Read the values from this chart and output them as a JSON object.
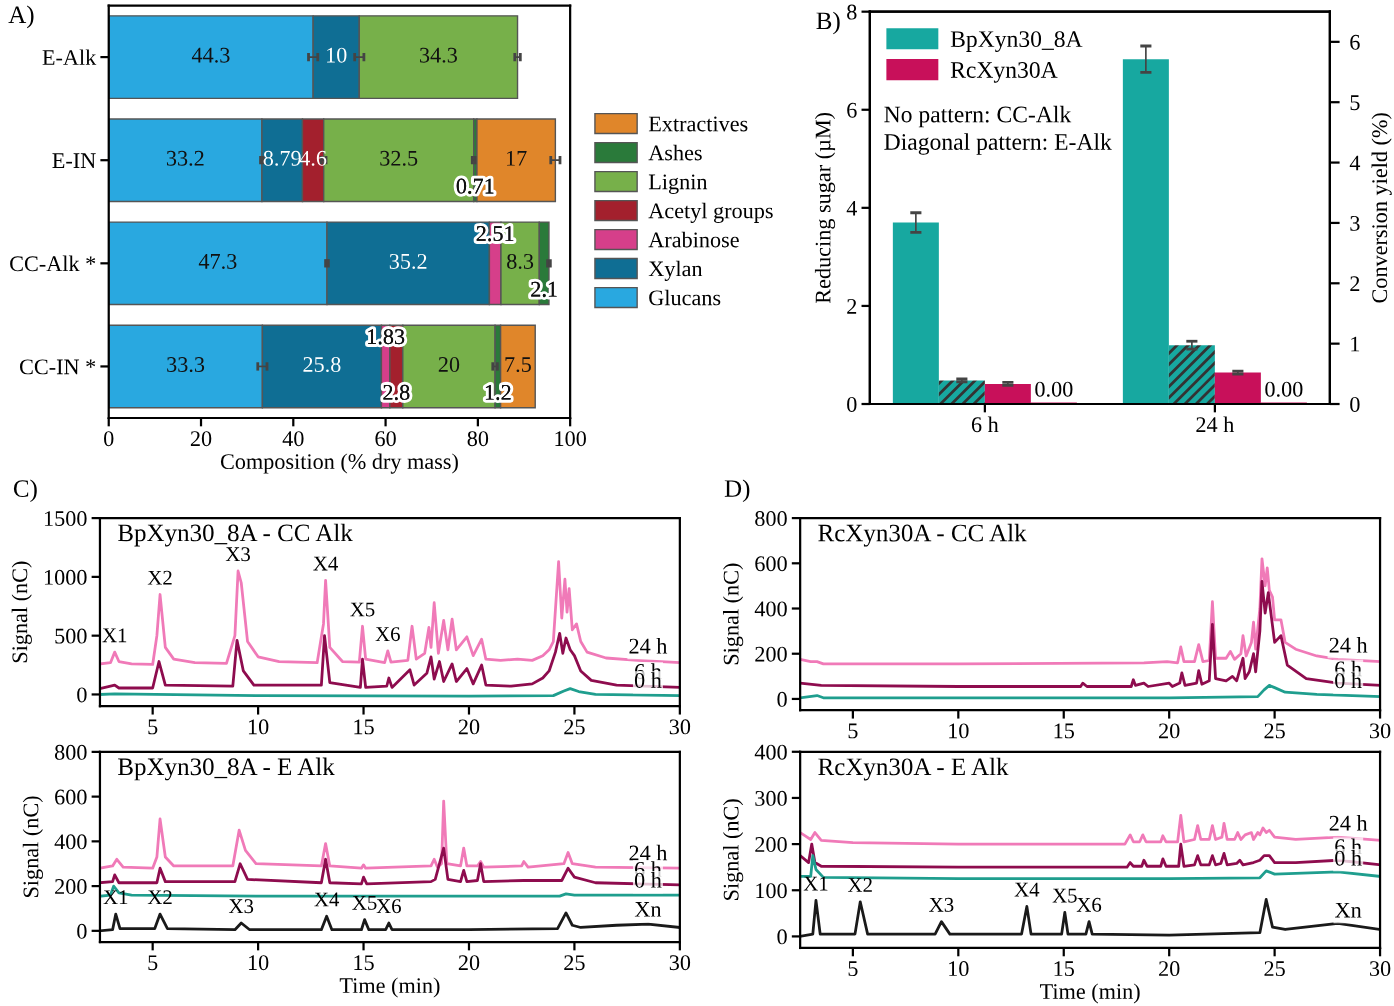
{
  "chart_data": [
    {
      "type": "bar",
      "orientation": "horizontal",
      "stacked": true,
      "categories": [
        "E-Alk",
        "E-IN",
        "CC-Alk *",
        "CC-IN *"
      ],
      "xlabel": "Composition (% dry mass)",
      "xlim": [
        0,
        100
      ],
      "xticks": [
        0,
        20,
        40,
        60,
        80,
        100
      ],
      "legend": "right",
      "data_labels": true,
      "annotations": [
        "A)"
      ],
      "series": [
        {
          "name": "Glucans",
          "color": "#29a8e0",
          "values": [
            44.3,
            33.2,
            47.3,
            33.3
          ],
          "errors": [
            1.0,
            0.3,
            0.3,
            1.0
          ]
        },
        {
          "name": "Xylan",
          "color": "#0f6e94",
          "values": [
            10,
            8.79,
            35.2,
            25.8
          ],
          "errors": [
            1.0,
            null,
            null,
            null
          ]
        },
        {
          "name": "Arabinose",
          "color": "#d63f8a",
          "values": [
            null,
            null,
            2.51,
            1.83
          ]
        },
        {
          "name": "Acetyl groups",
          "color": "#a3202d",
          "values": [
            null,
            4.6,
            null,
            2.8
          ],
          "errors": [
            null,
            0.5,
            null,
            null
          ]
        },
        {
          "name": "Lignin",
          "color": "#77b04a",
          "values": [
            34.3,
            32.5,
            8.3,
            20
          ],
          "errors": [
            0.6,
            0.3,
            null,
            0.5
          ]
        },
        {
          "name": "Ashes",
          "color": "#2a7a3a",
          "values": [
            null,
            0.71,
            2.1,
            1.2
          ],
          "errors": [
            null,
            null,
            0.3,
            null
          ]
        },
        {
          "name": "Extractives",
          "color": "#e0862a",
          "values": [
            null,
            17,
            null,
            7.5
          ],
          "errors": [
            null,
            1.0,
            null,
            null
          ]
        }
      ]
    },
    {
      "type": "bar",
      "categories": [
        "6 h",
        "24 h"
      ],
      "ylabel": "Reducing sugar (µM)",
      "y2label": "Conversion yield (%)",
      "ylim": [
        0,
        8
      ],
      "yticks": [
        0,
        2,
        4,
        6,
        8
      ],
      "y2lim": [
        0,
        6.5
      ],
      "y2ticks": [
        0,
        1,
        2,
        3,
        4,
        5,
        6
      ],
      "legend": "top left",
      "annotations": [
        "B)",
        "No pattern: CC-Alk",
        "Diagonal pattern: E-Alk"
      ],
      "series": [
        {
          "name": "BpXyn30_8A",
          "color": "#17a8a0",
          "values": [
            3.7,
            7.03
          ],
          "errors": [
            0.2,
            0.27
          ]
        },
        {
          "color": "#17a8a0",
          "values": [
            0.48,
            1.2
          ],
          "errors": [
            0.03,
            0.08
          ]
        },
        {
          "name": "RcXyn30A",
          "color": "#c8105a",
          "values": [
            0.41,
            0.64
          ],
          "errors": [
            0.03,
            0.03
          ]
        },
        {
          "color": "#c8105a",
          "values": [
            0,
            0
          ],
          "value_labels": [
            "0.00",
            "0.00"
          ]
        }
      ]
    },
    {
      "type": "line",
      "title": "BpXyn30_8A - CC Alk",
      "ylabel": "Signal (nC)",
      "xlim": [
        2.5,
        30
      ],
      "xticks": [
        5,
        10,
        15,
        20,
        25,
        30
      ],
      "ylim": [
        -100,
        1500
      ],
      "yticks": [
        0,
        500,
        1000,
        1500
      ],
      "annotations": [
        "C)",
        {
          "text": "X1",
          "x": 3.2,
          "y": 360
        },
        {
          "text": "X2",
          "x": 5.35,
          "y": 850
        },
        {
          "text": "X3",
          "x": 9.05,
          "y": 1050
        },
        {
          "text": "X4",
          "x": 13.2,
          "y": 970
        },
        {
          "text": "X5",
          "x": 14.95,
          "y": 580
        },
        {
          "text": "X6",
          "x": 16.15,
          "y": 370
        }
      ],
      "series": [
        {
          "name": "24 h",
          "color": "#f07ab8",
          "x": [
            2.5,
            3.0,
            3.2,
            3.4,
            4.0,
            5.0,
            5.2,
            5.35,
            5.6,
            6.0,
            7,
            8.5,
            8.9,
            9.05,
            9.2,
            9.5,
            10,
            11,
            12.8,
            13.1,
            13.2,
            13.4,
            14,
            14.8,
            14.95,
            15.1,
            16,
            16.15,
            16.3,
            17.1,
            17.3,
            17.5,
            17.9,
            18.1,
            18.2,
            18.35,
            18.55,
            18.8,
            19.0,
            19.2,
            19.4,
            19.9,
            20.2,
            20.6,
            20.8,
            21.5,
            22.3,
            23,
            23.5,
            23.8,
            24.0,
            24.25,
            24.4,
            24.55,
            24.65,
            24.75,
            24.9,
            25.1,
            25.3,
            25.6,
            26.5,
            28,
            30
          ],
          "values": [
            260,
            270,
            360,
            280,
            260,
            255,
            500,
            850,
            400,
            300,
            270,
            265,
            500,
            1050,
            950,
            450,
            320,
            280,
            270,
            600,
            970,
            400,
            280,
            275,
            580,
            300,
            270,
            370,
            275,
            290,
            580,
            300,
            350,
            570,
            400,
            780,
            350,
            630,
            380,
            640,
            380,
            490,
            330,
            470,
            300,
            290,
            300,
            290,
            330,
            380,
            450,
            1130,
            650,
            980,
            700,
            900,
            550,
            600,
            450,
            360,
            310,
            290,
            270
          ]
        },
        {
          "name": "6 h",
          "color": "#8e0c4e",
          "x": [
            2.5,
            3.2,
            3.4,
            5.0,
            5.3,
            5.6,
            8.8,
            9.0,
            9.3,
            9.8,
            13.0,
            13.15,
            13.4,
            14.85,
            14.95,
            15.1,
            16.1,
            16.2,
            16.35,
            17.2,
            17.4,
            18.0,
            18.2,
            18.35,
            18.6,
            18.8,
            19.2,
            19.4,
            19.9,
            20.2,
            20.6,
            20.8,
            22,
            23,
            23.5,
            23.8,
            24.1,
            24.3,
            24.45,
            24.6,
            24.8,
            25.0,
            25.3,
            25.8,
            27,
            30
          ],
          "values": [
            50,
            80,
            55,
            55,
            280,
            80,
            70,
            460,
            200,
            80,
            80,
            500,
            100,
            60,
            300,
            60,
            70,
            140,
            60,
            210,
            80,
            180,
            320,
            130,
            280,
            110,
            260,
            110,
            220,
            90,
            250,
            80,
            70,
            90,
            140,
            200,
            360,
            520,
            350,
            480,
            380,
            330,
            200,
            120,
            80,
            60
          ]
        },
        {
          "name": "0 h",
          "color": "#1f9e8e",
          "x": [
            2.5,
            3.2,
            10,
            20,
            24,
            24.5,
            24.8,
            25.2,
            26,
            30
          ],
          "values": [
            0,
            5,
            -10,
            -15,
            -10,
            30,
            50,
            25,
            0,
            -10
          ]
        }
      ]
    },
    {
      "type": "line",
      "title": "BpXyn30_8A - E Alk",
      "xlabel": "Time (min)",
      "ylabel": "Signal (nC)",
      "xlim": [
        2.5,
        30
      ],
      "xticks": [
        5,
        10,
        15,
        20,
        25,
        30
      ],
      "ylim": [
        -50,
        800
      ],
      "yticks": [
        0,
        200,
        400,
        600,
        800
      ],
      "annotations": [
        {
          "text": "X1",
          "x": 3.25,
          "y": 75
        },
        {
          "text": "X2",
          "x": 5.35,
          "y": 75
        },
        {
          "text": "X3",
          "x": 9.2,
          "y": 35
        },
        {
          "text": "X4",
          "x": 13.25,
          "y": 65
        },
        {
          "text": "X5",
          "x": 15.05,
          "y": 50
        },
        {
          "text": "X6",
          "x": 16.2,
          "y": 35
        }
      ],
      "series": [
        {
          "name": "24 h",
          "color": "#f07ab8",
          "x": [
            2.5,
            3.1,
            3.3,
            3.6,
            5.0,
            5.2,
            5.35,
            5.6,
            6.0,
            8.8,
            9.1,
            9.4,
            9.9,
            13.0,
            13.2,
            13.4,
            14.9,
            15.0,
            15.1,
            18.2,
            18.35,
            18.5,
            18.7,
            18.8,
            18.95,
            19.6,
            19.75,
            19.9,
            20.4,
            20.55,
            20.7,
            22.5,
            22.6,
            22.8,
            24.5,
            24.7,
            24.9,
            26,
            30
          ],
          "values": [
            280,
            290,
            320,
            285,
            280,
            330,
            500,
            330,
            290,
            290,
            450,
            360,
            300,
            290,
            390,
            290,
            280,
            295,
            280,
            290,
            320,
            285,
            300,
            580,
            300,
            290,
            370,
            290,
            290,
            310,
            285,
            290,
            310,
            285,
            300,
            350,
            300,
            285,
            280
          ]
        },
        {
          "name": "6 h",
          "color": "#8e0c4e",
          "x": [
            2.5,
            3.1,
            3.2,
            3.4,
            5.2,
            5.35,
            5.6,
            8.9,
            9.15,
            9.5,
            13.0,
            13.2,
            13.4,
            14.9,
            15.0,
            15.15,
            18.2,
            18.4,
            18.8,
            19.0,
            19.6,
            19.75,
            19.9,
            20.4,
            20.55,
            20.7,
            22.6,
            24.4,
            24.7,
            25.0,
            26,
            30
          ],
          "values": [
            215,
            220,
            250,
            215,
            215,
            280,
            220,
            220,
            300,
            230,
            215,
            320,
            215,
            210,
            240,
            210,
            220,
            230,
            370,
            230,
            220,
            270,
            220,
            225,
            300,
            220,
            225,
            225,
            280,
            240,
            215,
            205
          ]
        },
        {
          "name": "0 h",
          "color": "#1f9e8e",
          "x": [
            2.5,
            3.0,
            3.15,
            3.4,
            4,
            10,
            20,
            24.3,
            24.6,
            25,
            30
          ],
          "values": [
            155,
            160,
            200,
            170,
            160,
            155,
            155,
            155,
            165,
            160,
            160
          ]
        },
        {
          "name": "Xn",
          "color": "#1a1a1a",
          "x": [
            2.5,
            3.1,
            3.25,
            3.45,
            5.1,
            5.35,
            5.7,
            8.9,
            9.2,
            9.6,
            13.0,
            13.25,
            13.5,
            14.9,
            15.05,
            15.25,
            16.05,
            16.2,
            16.35,
            20,
            24.2,
            24.6,
            24.9,
            25.3,
            27,
            28.5,
            30
          ],
          "values": [
            0,
            5,
            75,
            10,
            10,
            75,
            10,
            5,
            35,
            5,
            5,
            65,
            5,
            5,
            50,
            5,
            5,
            35,
            5,
            5,
            10,
            80,
            25,
            15,
            25,
            30,
            15
          ]
        }
      ]
    },
    {
      "type": "line",
      "title": "RcXyn30A - CC Alk",
      "ylabel": "Signal (nC)",
      "xlim": [
        2.5,
        30
      ],
      "xticks": [
        5,
        10,
        15,
        20,
        25,
        30
      ],
      "ylim": [
        -50,
        800
      ],
      "yticks": [
        0,
        200,
        400,
        600,
        800
      ],
      "annotations": [
        "D)"
      ],
      "series": [
        {
          "name": "24 h",
          "color": "#f07ab8",
          "x": [
            2.5,
            3.0,
            3.3,
            3.6,
            10,
            18.8,
            19.9,
            20.4,
            20.55,
            20.7,
            21.2,
            21.4,
            21.6,
            21.9,
            22.05,
            22.2,
            22.7,
            22.9,
            23.1,
            23.4,
            23.5,
            23.65,
            23.9,
            24.0,
            24.1,
            24.3,
            24.4,
            24.55,
            24.65,
            24.75,
            24.9,
            25.0,
            25.3,
            25.5,
            26,
            27,
            28,
            30
          ],
          "values": [
            175,
            165,
            165,
            155,
            155,
            160,
            165,
            160,
            230,
            165,
            165,
            240,
            165,
            170,
            430,
            180,
            180,
            210,
            175,
            200,
            280,
            190,
            250,
            340,
            220,
            400,
            620,
            500,
            580,
            480,
            450,
            350,
            350,
            250,
            220,
            190,
            175,
            165
          ]
        },
        {
          "name": "6 h",
          "color": "#8e0c4e",
          "x": [
            2.5,
            3.5,
            10,
            15.8,
            15.9,
            16.1,
            18.2,
            18.3,
            18.4,
            18.8,
            19.0,
            20.0,
            20.15,
            20.5,
            20.6,
            20.75,
            21.3,
            21.4,
            21.55,
            21.9,
            22.05,
            22.2,
            22.7,
            23.0,
            23.2,
            23.5,
            23.6,
            23.8,
            24.0,
            24.1,
            24.3,
            24.4,
            24.55,
            24.7,
            24.85,
            25.0,
            25.3,
            25.6,
            26.5,
            28,
            30
          ],
          "values": [
            70,
            60,
            55,
            55,
            70,
            55,
            55,
            85,
            60,
            70,
            55,
            70,
            55,
            70,
            115,
            60,
            70,
            125,
            65,
            80,
            330,
            90,
            80,
            100,
            80,
            180,
            90,
            120,
            200,
            120,
            300,
            520,
            380,
            470,
            360,
            250,
            280,
            150,
            90,
            70,
            60
          ]
        },
        {
          "name": "0 h",
          "color": "#1f9e8e",
          "x": [
            2.5,
            3.3,
            3.6,
            10,
            20,
            24.2,
            24.5,
            24.75,
            25,
            25.5,
            27,
            30
          ],
          "values": [
            5,
            15,
            5,
            5,
            5,
            10,
            40,
            60,
            50,
            30,
            20,
            10
          ]
        }
      ]
    },
    {
      "type": "line",
      "title": "RcXyn30A - E Alk",
      "xlabel": "Time (min)",
      "ylabel": "Signal (nC)",
      "xlim": [
        2.5,
        30
      ],
      "xticks": [
        5,
        10,
        15,
        20,
        25,
        30
      ],
      "ylim": [
        -25,
        400
      ],
      "yticks": [
        0,
        100,
        200,
        300,
        400
      ],
      "annotations": [
        {
          "text": "X1",
          "x": 3.25,
          "y": 78
        },
        {
          "text": "X2",
          "x": 5.35,
          "y": 75
        },
        {
          "text": "X3",
          "x": 9.2,
          "y": 32
        },
        {
          "text": "X4",
          "x": 13.25,
          "y": 65
        },
        {
          "text": "X5",
          "x": 15.05,
          "y": 52
        },
        {
          "text": "X6",
          "x": 16.2,
          "y": 32
        }
      ],
      "series": [
        {
          "name": "24 h",
          "color": "#f07ab8",
          "x": [
            2.5,
            3.0,
            3.2,
            3.5,
            5,
            10,
            17.9,
            18.15,
            18.3,
            18.6,
            18.75,
            18.9,
            19.6,
            19.7,
            19.85,
            20.4,
            20.55,
            20.7,
            21.2,
            21.35,
            21.5,
            21.9,
            22.05,
            22.2,
            22.5,
            22.6,
            22.75,
            23.1,
            23.25,
            23.4,
            23.6,
            23.9,
            24.0,
            24.2,
            24.3,
            24.45,
            24.6,
            24.75,
            25.0,
            26,
            28,
            30
          ],
          "values": [
            225,
            210,
            225,
            208,
            203,
            200,
            200,
            220,
            205,
            205,
            220,
            205,
            205,
            218,
            205,
            205,
            262,
            205,
            210,
            240,
            210,
            210,
            240,
            210,
            215,
            245,
            210,
            210,
            225,
            210,
            220,
            225,
            210,
            225,
            220,
            235,
            225,
            230,
            215,
            210,
            215,
            208
          ]
        },
        {
          "name": "6 h",
          "color": "#8e0c4e",
          "x": [
            2.5,
            2.9,
            3.05,
            3.2,
            3.5,
            10,
            18,
            18.15,
            18.3,
            18.7,
            18.8,
            18.95,
            19.6,
            19.7,
            19.85,
            20.45,
            20.55,
            20.7,
            21.2,
            21.35,
            21.5,
            21.9,
            22.05,
            22.2,
            22.45,
            22.6,
            22.75,
            23.2,
            23.35,
            23.5,
            24,
            24.3,
            24.5,
            24.75,
            25,
            26,
            28,
            30
          ],
          "values": [
            175,
            160,
            200,
            160,
            152,
            150,
            150,
            160,
            152,
            152,
            165,
            152,
            152,
            168,
            152,
            152,
            200,
            152,
            155,
            175,
            155,
            155,
            175,
            155,
            158,
            180,
            155,
            158,
            165,
            155,
            160,
            165,
            175,
            175,
            160,
            160,
            165,
            155
          ]
        },
        {
          "name": "0 h",
          "color": "#1f9e8e",
          "x": [
            2.5,
            3.0,
            3.1,
            3.25,
            3.6,
            10,
            20,
            24.3,
            24.6,
            25,
            28,
            30
          ],
          "values": [
            130,
            130,
            175,
            145,
            128,
            125,
            125,
            127,
            142,
            135,
            140,
            130
          ]
        },
        {
          "name": "Xn",
          "color": "#1a1a1a",
          "x": [
            2.5,
            3.1,
            3.25,
            3.45,
            5.1,
            5.35,
            5.7,
            8.9,
            9.2,
            9.6,
            13.0,
            13.25,
            13.45,
            14.9,
            15.05,
            15.2,
            16.05,
            16.2,
            16.35,
            20,
            24.3,
            24.6,
            24.9,
            25.5,
            28,
            30
          ],
          "values": [
            0,
            5,
            78,
            5,
            5,
            75,
            5,
            5,
            32,
            5,
            5,
            65,
            5,
            5,
            52,
            5,
            5,
            32,
            5,
            3,
            8,
            80,
            20,
            15,
            28,
            15
          ]
        }
      ]
    }
  ]
}
